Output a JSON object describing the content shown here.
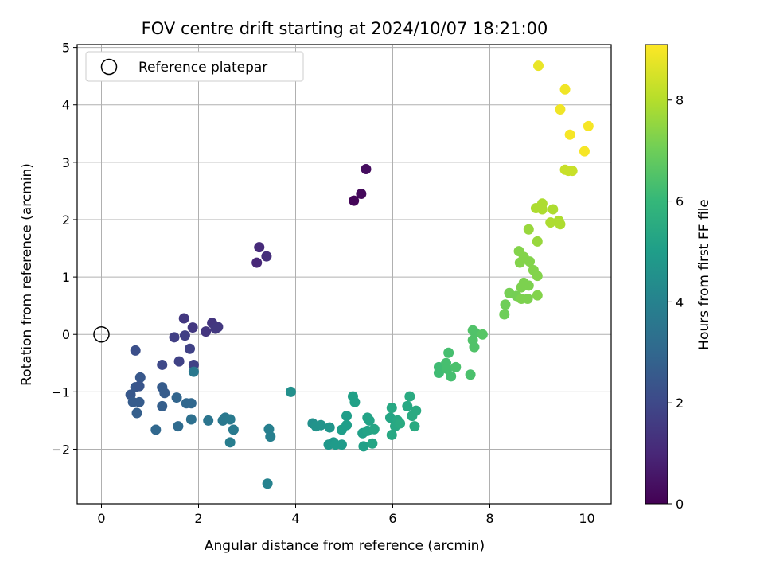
{
  "chart_data": {
    "type": "scatter",
    "title": "FOV centre drift starting at 2024/10/07 18:21:00",
    "xlabel": "Angular distance from reference (arcmin)",
    "ylabel": "Rotation from reference (arcmin)",
    "xlim": [
      -0.5,
      10.5
    ],
    "ylim": [
      -2.95,
      5.05
    ],
    "xticks": [
      0,
      2,
      4,
      6,
      8,
      10
    ],
    "yticks": [
      -2,
      -1,
      0,
      1,
      2,
      3,
      4,
      5
    ],
    "x_tick_labels": [
      "0",
      "2",
      "4",
      "6",
      "8",
      "10"
    ],
    "y_tick_labels": [
      "−2",
      "−1",
      "0",
      "1",
      "2",
      "3",
      "4",
      "5"
    ],
    "grid": true,
    "legend": {
      "placement": "top-left",
      "entries": [
        "Reference platepar"
      ]
    },
    "reference_point": {
      "x": 0,
      "y": 0
    },
    "colorbar": {
      "label": "Hours from first FF file",
      "range": [
        0,
        9.1
      ],
      "ticks": [
        0,
        2,
        4,
        6,
        8
      ],
      "tick_labels": [
        "0",
        "2",
        "4",
        "6",
        "8"
      ],
      "colormap": "viridis"
    },
    "points": [
      {
        "x": 5.2,
        "y": 2.33,
        "c": 0.1
      },
      {
        "x": 5.35,
        "y": 2.45,
        "c": 0.2
      },
      {
        "x": 5.45,
        "y": 2.88,
        "c": 0.3
      },
      {
        "x": 3.2,
        "y": 1.25,
        "c": 1.0
      },
      {
        "x": 3.25,
        "y": 1.52,
        "c": 1.1
      },
      {
        "x": 3.4,
        "y": 1.36,
        "c": 1.2
      },
      {
        "x": 1.7,
        "y": 0.28,
        "c": 1.5
      },
      {
        "x": 1.88,
        "y": 0.12,
        "c": 1.5
      },
      {
        "x": 2.15,
        "y": 0.05,
        "c": 1.4
      },
      {
        "x": 2.28,
        "y": 0.2,
        "c": 1.4
      },
      {
        "x": 2.35,
        "y": 0.1,
        "c": 1.5
      },
      {
        "x": 2.4,
        "y": 0.13,
        "c": 1.5
      },
      {
        "x": 1.72,
        "y": -0.02,
        "c": 1.7
      },
      {
        "x": 1.5,
        "y": -0.05,
        "c": 1.7
      },
      {
        "x": 1.82,
        "y": -0.25,
        "c": 1.8
      },
      {
        "x": 1.6,
        "y": -0.47,
        "c": 1.8
      },
      {
        "x": 1.9,
        "y": -0.53,
        "c": 1.8
      },
      {
        "x": 1.25,
        "y": -0.53,
        "c": 2.0
      },
      {
        "x": 0.7,
        "y": -0.28,
        "c": 2.2
      },
      {
        "x": 0.8,
        "y": -0.75,
        "c": 2.5
      },
      {
        "x": 0.7,
        "y": -0.92,
        "c": 2.5
      },
      {
        "x": 0.78,
        "y": -0.9,
        "c": 2.4
      },
      {
        "x": 0.6,
        "y": -1.05,
        "c": 2.5
      },
      {
        "x": 0.65,
        "y": -1.18,
        "c": 2.6
      },
      {
        "x": 0.78,
        "y": -1.18,
        "c": 2.6
      },
      {
        "x": 0.73,
        "y": -1.37,
        "c": 2.7
      },
      {
        "x": 1.25,
        "y": -0.92,
        "c": 2.6
      },
      {
        "x": 1.3,
        "y": -1.02,
        "c": 2.6
      },
      {
        "x": 1.25,
        "y": -1.25,
        "c": 2.7
      },
      {
        "x": 1.55,
        "y": -1.1,
        "c": 2.9
      },
      {
        "x": 1.75,
        "y": -1.2,
        "c": 3.0
      },
      {
        "x": 1.85,
        "y": -1.2,
        "c": 3.0
      },
      {
        "x": 1.12,
        "y": -1.66,
        "c": 3.0
      },
      {
        "x": 1.58,
        "y": -1.6,
        "c": 3.1
      },
      {
        "x": 1.85,
        "y": -1.48,
        "c": 3.3
      },
      {
        "x": 1.9,
        "y": -0.65,
        "c": 3.6
      },
      {
        "x": 2.2,
        "y": -1.5,
        "c": 3.5
      },
      {
        "x": 2.5,
        "y": -1.5,
        "c": 3.6
      },
      {
        "x": 2.55,
        "y": -1.45,
        "c": 3.6
      },
      {
        "x": 2.65,
        "y": -1.48,
        "c": 3.7
      },
      {
        "x": 2.72,
        "y": -1.66,
        "c": 3.7
      },
      {
        "x": 2.65,
        "y": -1.88,
        "c": 3.8
      },
      {
        "x": 3.45,
        "y": -1.65,
        "c": 3.9
      },
      {
        "x": 3.48,
        "y": -1.78,
        "c": 3.9
      },
      {
        "x": 3.42,
        "y": -2.6,
        "c": 4.0
      },
      {
        "x": 3.9,
        "y": -1.0,
        "c": 4.5
      },
      {
        "x": 4.35,
        "y": -1.55,
        "c": 4.5
      },
      {
        "x": 4.42,
        "y": -1.6,
        "c": 4.6
      },
      {
        "x": 4.52,
        "y": -1.58,
        "c": 4.6
      },
      {
        "x": 4.7,
        "y": -1.62,
        "c": 4.7
      },
      {
        "x": 4.68,
        "y": -1.92,
        "c": 4.8
      },
      {
        "x": 4.78,
        "y": -1.88,
        "c": 4.8
      },
      {
        "x": 4.82,
        "y": -1.92,
        "c": 4.9
      },
      {
        "x": 4.95,
        "y": -1.92,
        "c": 4.9
      },
      {
        "x": 4.95,
        "y": -1.66,
        "c": 5.0
      },
      {
        "x": 5.05,
        "y": -1.58,
        "c": 5.0
      },
      {
        "x": 5.05,
        "y": -1.42,
        "c": 5.0
      },
      {
        "x": 5.18,
        "y": -1.08,
        "c": 5.1
      },
      {
        "x": 5.22,
        "y": -1.18,
        "c": 5.1
      },
      {
        "x": 5.38,
        "y": -1.72,
        "c": 5.1
      },
      {
        "x": 5.4,
        "y": -1.95,
        "c": 5.1
      },
      {
        "x": 5.48,
        "y": -1.45,
        "c": 5.2
      },
      {
        "x": 5.52,
        "y": -1.5,
        "c": 5.2
      },
      {
        "x": 5.48,
        "y": -1.68,
        "c": 5.2
      },
      {
        "x": 5.58,
        "y": -1.9,
        "c": 5.3
      },
      {
        "x": 5.62,
        "y": -1.65,
        "c": 5.3
      },
      {
        "x": 5.95,
        "y": -1.45,
        "c": 5.3
      },
      {
        "x": 5.98,
        "y": -1.28,
        "c": 5.4
      },
      {
        "x": 5.98,
        "y": -1.75,
        "c": 5.4
      },
      {
        "x": 6.05,
        "y": -1.6,
        "c": 5.4
      },
      {
        "x": 6.1,
        "y": -1.5,
        "c": 5.4
      },
      {
        "x": 6.15,
        "y": -1.55,
        "c": 5.5
      },
      {
        "x": 6.3,
        "y": -1.25,
        "c": 5.4
      },
      {
        "x": 6.35,
        "y": -1.08,
        "c": 5.5
      },
      {
        "x": 6.4,
        "y": -1.42,
        "c": 5.5
      },
      {
        "x": 6.45,
        "y": -1.6,
        "c": 5.5
      },
      {
        "x": 6.48,
        "y": -1.33,
        "c": 5.5
      },
      {
        "x": 6.95,
        "y": -0.57,
        "c": 6.2
      },
      {
        "x": 6.95,
        "y": -0.67,
        "c": 6.2
      },
      {
        "x": 7.1,
        "y": -0.5,
        "c": 6.3
      },
      {
        "x": 7.15,
        "y": -0.32,
        "c": 6.3
      },
      {
        "x": 7.12,
        "y": -0.6,
        "c": 6.3
      },
      {
        "x": 7.2,
        "y": -0.73,
        "c": 6.3
      },
      {
        "x": 7.3,
        "y": -0.57,
        "c": 6.4
      },
      {
        "x": 7.6,
        "y": -0.7,
        "c": 6.4
      },
      {
        "x": 7.65,
        "y": 0.07,
        "c": 6.5
      },
      {
        "x": 7.7,
        "y": 0.03,
        "c": 6.5
      },
      {
        "x": 7.65,
        "y": -0.1,
        "c": 6.5
      },
      {
        "x": 7.68,
        "y": -0.22,
        "c": 6.5
      },
      {
        "x": 7.85,
        "y": 0.0,
        "c": 6.6
      },
      {
        "x": 8.3,
        "y": 0.35,
        "c": 7.0
      },
      {
        "x": 8.32,
        "y": 0.52,
        "c": 7.0
      },
      {
        "x": 8.4,
        "y": 0.72,
        "c": 7.1
      },
      {
        "x": 8.55,
        "y": 0.67,
        "c": 7.1
      },
      {
        "x": 8.65,
        "y": 0.62,
        "c": 7.2
      },
      {
        "x": 8.65,
        "y": 0.82,
        "c": 7.2
      },
      {
        "x": 8.7,
        "y": 0.9,
        "c": 7.2
      },
      {
        "x": 8.8,
        "y": 0.85,
        "c": 7.2
      },
      {
        "x": 8.78,
        "y": 0.62,
        "c": 7.2
      },
      {
        "x": 8.98,
        "y": 0.68,
        "c": 7.3
      },
      {
        "x": 8.6,
        "y": 1.45,
        "c": 7.3
      },
      {
        "x": 8.62,
        "y": 1.25,
        "c": 7.3
      },
      {
        "x": 8.7,
        "y": 1.35,
        "c": 7.3
      },
      {
        "x": 8.82,
        "y": 1.27,
        "c": 7.3
      },
      {
        "x": 8.9,
        "y": 1.12,
        "c": 7.3
      },
      {
        "x": 8.98,
        "y": 1.02,
        "c": 7.3
      },
      {
        "x": 8.98,
        "y": 1.62,
        "c": 7.6
      },
      {
        "x": 8.8,
        "y": 1.83,
        "c": 7.6
      },
      {
        "x": 8.95,
        "y": 2.2,
        "c": 7.9
      },
      {
        "x": 9.08,
        "y": 2.28,
        "c": 7.9
      },
      {
        "x": 9.08,
        "y": 2.18,
        "c": 7.9
      },
      {
        "x": 9.3,
        "y": 2.18,
        "c": 7.9
      },
      {
        "x": 9.25,
        "y": 1.95,
        "c": 7.9
      },
      {
        "x": 9.42,
        "y": 1.98,
        "c": 7.9
      },
      {
        "x": 9.45,
        "y": 1.92,
        "c": 7.9
      },
      {
        "x": 9.55,
        "y": 2.87,
        "c": 8.3
      },
      {
        "x": 9.62,
        "y": 2.85,
        "c": 8.3
      },
      {
        "x": 9.7,
        "y": 2.85,
        "c": 8.3
      },
      {
        "x": 9.0,
        "y": 4.68,
        "c": 8.8
      },
      {
        "x": 9.55,
        "y": 4.27,
        "c": 8.9
      },
      {
        "x": 9.45,
        "y": 3.92,
        "c": 8.9
      },
      {
        "x": 10.03,
        "y": 3.63,
        "c": 9.0
      },
      {
        "x": 9.65,
        "y": 3.48,
        "c": 9.0
      },
      {
        "x": 9.95,
        "y": 3.19,
        "c": 9.0
      }
    ]
  }
}
